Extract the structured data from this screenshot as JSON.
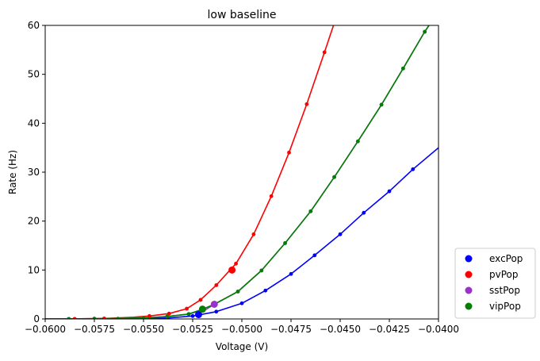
{
  "chart_data": {
    "type": "line",
    "title": "low baseline",
    "xlabel": "Voltage (V)",
    "ylabel": "Rate (Hz)",
    "xlim": [
      -0.06,
      -0.04
    ],
    "ylim": [
      0,
      60
    ],
    "x_ticks": [
      -0.06,
      -0.0575,
      -0.055,
      -0.0525,
      -0.05,
      -0.0475,
      -0.045,
      -0.0425,
      -0.04
    ],
    "x_tick_labels": [
      "−0.0600",
      "−0.0575",
      "−0.0550",
      "−0.0525",
      "−0.0500",
      "−0.0475",
      "−0.0450",
      "−0.0425",
      "−0.0400"
    ],
    "y_ticks": [
      0,
      10,
      20,
      30,
      40,
      50,
      60
    ],
    "y_tick_labels": [
      "0",
      "10",
      "20",
      "30",
      "40",
      "50",
      "60"
    ],
    "grid": false,
    "legend": {
      "position": "outside-right-bottom",
      "entries": [
        {
          "name": "excPop",
          "color": "#0000ff"
        },
        {
          "name": "pvPop",
          "color": "#ff0000"
        },
        {
          "name": "sstPop",
          "color": "#9932cc"
        },
        {
          "name": "vipPop",
          "color": "#008000"
        }
      ]
    },
    "series": [
      {
        "name": "excPop",
        "color": "#0000ff",
        "x": [
          -0.06,
          -0.0588,
          -0.0575,
          -0.0563,
          -0.055,
          -0.0538,
          -0.0525,
          -0.0513,
          -0.05,
          -0.0488,
          -0.0475,
          -0.0463,
          -0.045,
          -0.0438,
          -0.0425,
          -0.0413,
          -0.04
        ],
        "y": [
          0,
          0,
          0,
          0,
          0.05,
          0.2,
          0.6,
          1.5,
          3.2,
          5.8,
          9.2,
          13.0,
          17.3,
          21.7,
          26.1,
          30.6,
          35.0
        ],
        "sample_points": [
          [
            -0.0588,
            0
          ],
          [
            -0.0575,
            0
          ],
          [
            -0.0563,
            0
          ],
          [
            -0.055,
            0.05
          ],
          [
            -0.0538,
            0.2
          ],
          [
            -0.0525,
            0.6
          ],
          [
            -0.0513,
            1.5
          ],
          [
            -0.05,
            3.2
          ],
          [
            -0.0488,
            5.8
          ],
          [
            -0.0475,
            9.2
          ],
          [
            -0.0463,
            13.0
          ],
          [
            -0.045,
            17.3
          ],
          [
            -0.0438,
            21.7
          ],
          [
            -0.0425,
            26.1
          ],
          [
            -0.0413,
            30.6
          ]
        ]
      },
      {
        "name": "pvPop",
        "color": "#ff0000",
        "x": [
          -0.06,
          -0.0585,
          -0.057,
          -0.0555,
          -0.0547,
          -0.0537,
          -0.0528,
          -0.0521,
          -0.0513,
          -0.0506,
          -0.0503,
          -0.0494,
          -0.0485,
          -0.0476,
          -0.0467,
          -0.0458,
          -0.0453
        ],
        "y": [
          0,
          0.02,
          0.1,
          0.35,
          0.6,
          1.1,
          2.1,
          3.9,
          6.9,
          10.0,
          11.3,
          17.3,
          25.1,
          34.0,
          43.9,
          54.5,
          60.5
        ],
        "sample_points": [
          [
            -0.0585,
            0.02
          ],
          [
            -0.057,
            0.1
          ],
          [
            -0.0547,
            0.6
          ],
          [
            -0.0537,
            1.1
          ],
          [
            -0.0528,
            2.1
          ],
          [
            -0.0521,
            3.9
          ],
          [
            -0.0513,
            6.9
          ],
          [
            -0.0503,
            11.3
          ],
          [
            -0.0494,
            17.3
          ],
          [
            -0.0485,
            25.1
          ],
          [
            -0.0476,
            34.0
          ],
          [
            -0.0467,
            43.9
          ],
          [
            -0.0458,
            54.5
          ]
        ]
      },
      {
        "name": "sstPop",
        "color": "#9932cc",
        "x": [
          -0.06,
          -0.0575,
          -0.055,
          -0.0538,
          -0.0527,
          -0.0518,
          -0.0514,
          -0.0502,
          -0.049,
          -0.0478,
          -0.0465,
          -0.0453,
          -0.0441,
          -0.0429,
          -0.0418,
          -0.0407,
          -0.0404
        ],
        "y": [
          0,
          0.05,
          0.2,
          0.5,
          1.0,
          2.0,
          3.0,
          5.6,
          9.9,
          15.5,
          22.0,
          29.0,
          36.3,
          43.8,
          51.2,
          58.7,
          60.5
        ],
        "sample_points": [
          [
            -0.0575,
            0.05
          ],
          [
            -0.055,
            0.2
          ],
          [
            -0.0538,
            0.5
          ],
          [
            -0.0527,
            1.0
          ],
          [
            -0.0502,
            5.6
          ],
          [
            -0.049,
            9.9
          ],
          [
            -0.0478,
            15.5
          ],
          [
            -0.0465,
            22.0
          ],
          [
            -0.0453,
            29.0
          ],
          [
            -0.0441,
            36.3
          ],
          [
            -0.0429,
            43.8
          ],
          [
            -0.0418,
            51.2
          ],
          [
            -0.0407,
            58.7
          ]
        ]
      },
      {
        "name": "vipPop",
        "color": "#008000",
        "x": [
          -0.06,
          -0.0575,
          -0.055,
          -0.0538,
          -0.0527,
          -0.052,
          -0.0514,
          -0.0502,
          -0.049,
          -0.0478,
          -0.0465,
          -0.0453,
          -0.0441,
          -0.0429,
          -0.0418,
          -0.0407,
          -0.0404
        ],
        "y": [
          0,
          0.05,
          0.2,
          0.5,
          1.0,
          2.0,
          3.0,
          5.6,
          9.9,
          15.5,
          22.0,
          29.0,
          36.3,
          43.8,
          51.2,
          58.7,
          60.5
        ],
        "sample_points": [
          [
            -0.0588,
            0
          ],
          [
            -0.0575,
            0.05
          ],
          [
            -0.0563,
            0.05
          ],
          [
            -0.055,
            0.2
          ],
          [
            -0.0538,
            0.5
          ],
          [
            -0.0527,
            1.0
          ],
          [
            -0.0502,
            5.6
          ],
          [
            -0.049,
            9.9
          ],
          [
            -0.0478,
            15.5
          ],
          [
            -0.0465,
            22.0
          ],
          [
            -0.0453,
            29.0
          ],
          [
            -0.0441,
            36.3
          ],
          [
            -0.0429,
            43.8
          ],
          [
            -0.0418,
            51.2
          ],
          [
            -0.0407,
            58.7
          ]
        ]
      }
    ],
    "operating_points": [
      {
        "name": "excPop",
        "color": "#0000ff",
        "x": -0.0522,
        "y": 0.9
      },
      {
        "name": "pvPop",
        "color": "#ff0000",
        "x": -0.0505,
        "y": 10.0
      },
      {
        "name": "sstPop",
        "color": "#9932cc",
        "x": -0.0514,
        "y": 3.0
      },
      {
        "name": "vipPop",
        "color": "#008000",
        "x": -0.052,
        "y": 2.0
      }
    ]
  }
}
